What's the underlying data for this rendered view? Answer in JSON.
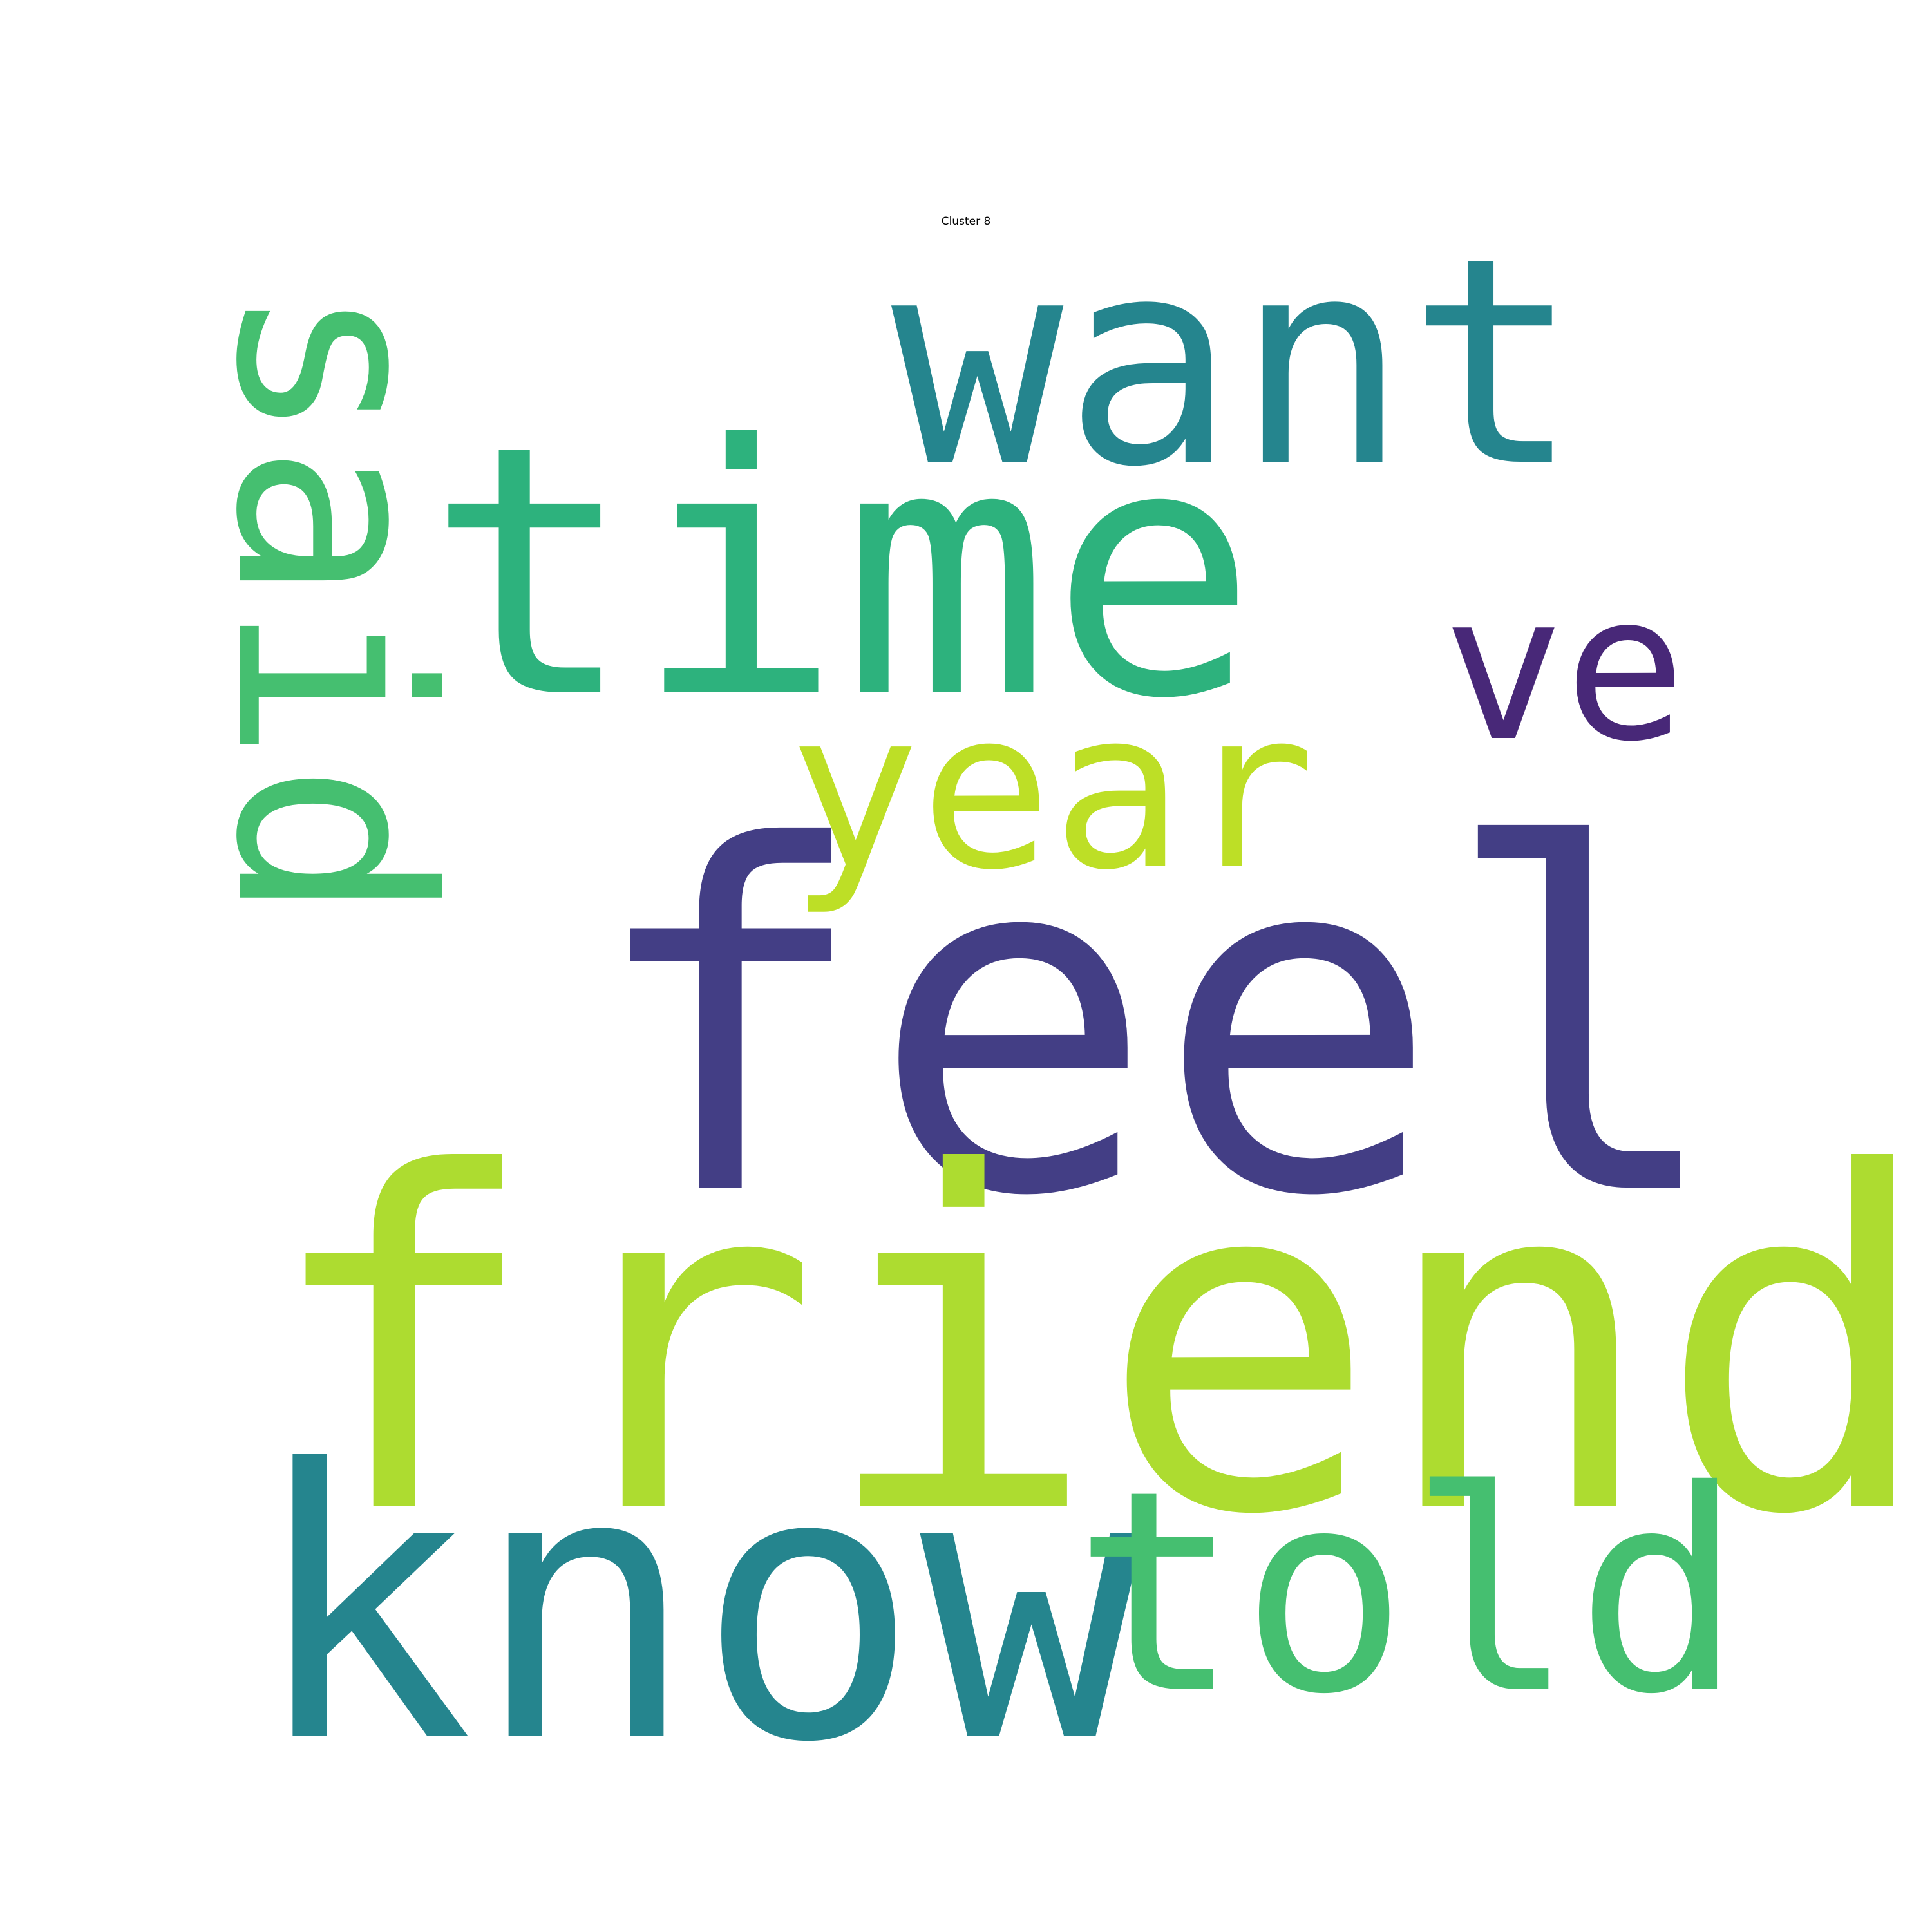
{
  "title": "Cluster 8",
  "chart_data": {
    "type": "wordcloud",
    "title": "Cluster 8",
    "words": [
      {
        "text": "feel",
        "weight": 1.0,
        "color": "#433e85",
        "orientation": "horizontal"
      },
      {
        "text": "friend",
        "weight": 0.97,
        "color": "#addc30",
        "orientation": "horizontal"
      },
      {
        "text": "time",
        "weight": 0.72,
        "color": "#2db27d",
        "orientation": "horizontal"
      },
      {
        "text": "know",
        "weight": 0.78,
        "color": "#25858e",
        "orientation": "horizontal"
      },
      {
        "text": "want",
        "weight": 0.6,
        "color": "#25858e",
        "orientation": "horizontal"
      },
      {
        "text": "told",
        "weight": 0.58,
        "color": "#45bf70",
        "orientation": "horizontal"
      },
      {
        "text": "said",
        "weight": 0.56,
        "color": "#45bf70",
        "orientation": "vertical"
      },
      {
        "text": "year",
        "weight": 0.46,
        "color": "#bddf26",
        "orientation": "horizontal"
      },
      {
        "text": "ve",
        "weight": 0.42,
        "color": "#482878",
        "orientation": "horizontal"
      }
    ]
  }
}
